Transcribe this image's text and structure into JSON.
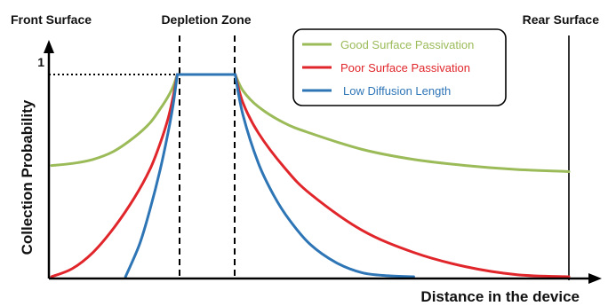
{
  "chart_data": {
    "type": "line",
    "xlabel": "Distance in the device",
    "ylabel": "Collection Probability",
    "y_tick_labels": [
      "1"
    ],
    "ylim": [
      0,
      1
    ],
    "region_labels": {
      "front": "Front Surface",
      "depletion": "Depletion Zone",
      "rear": "Rear Surface"
    },
    "depletion_zone_bounds": [
      0.243,
      0.355
    ],
    "x_range": [
      0,
      1
    ],
    "legend_position": "top-right",
    "series": [
      {
        "name": "Good Surface Passivation",
        "color": "#9bbb59",
        "x": [
          0.0,
          0.04,
          0.08,
          0.12,
          0.16,
          0.19,
          0.21,
          0.225,
          0.235,
          0.243,
          0.355,
          0.37,
          0.4,
          0.45,
          0.5,
          0.6,
          0.7,
          0.8,
          0.9,
          1.0
        ],
        "y": [
          0.55,
          0.56,
          0.58,
          0.62,
          0.69,
          0.76,
          0.83,
          0.89,
          0.94,
          1.0,
          1.0,
          0.92,
          0.84,
          0.76,
          0.71,
          0.63,
          0.58,
          0.55,
          0.53,
          0.52
        ]
      },
      {
        "name": "Poor Surface Passivation",
        "color": "#e0262b",
        "x": [
          0.0,
          0.04,
          0.08,
          0.12,
          0.16,
          0.19,
          0.21,
          0.225,
          0.235,
          0.243,
          0.355,
          0.37,
          0.4,
          0.45,
          0.5,
          0.6,
          0.7,
          0.8,
          0.9,
          1.0
        ],
        "y": [
          0.0,
          0.04,
          0.12,
          0.24,
          0.39,
          0.53,
          0.66,
          0.78,
          0.89,
          1.0,
          1.0,
          0.86,
          0.71,
          0.54,
          0.41,
          0.23,
          0.12,
          0.05,
          0.01,
          0.0
        ]
      },
      {
        "name": "Low Diffusion Length",
        "color": "#2e75b6",
        "x": [
          0.143,
          0.17,
          0.19,
          0.21,
          0.225,
          0.235,
          0.243,
          0.355,
          0.37,
          0.4,
          0.43,
          0.46,
          0.5,
          0.55,
          0.6,
          0.65,
          0.7
        ],
        "y": [
          0.0,
          0.16,
          0.33,
          0.53,
          0.71,
          0.85,
          1.0,
          1.0,
          0.8,
          0.56,
          0.4,
          0.28,
          0.16,
          0.07,
          0.02,
          0.005,
          0.0
        ]
      }
    ]
  }
}
